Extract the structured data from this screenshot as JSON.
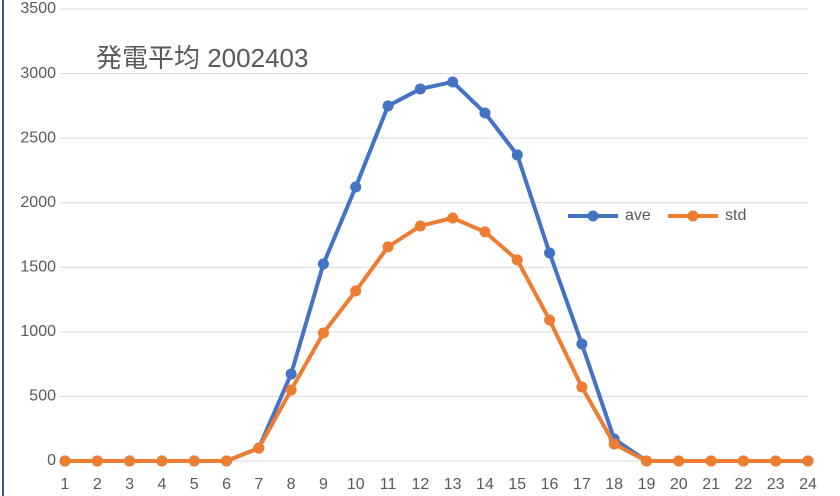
{
  "chart_data": {
    "type": "line",
    "title": "発電平均 2002403",
    "categories": [
      "1",
      "2",
      "3",
      "4",
      "5",
      "6",
      "7",
      "8",
      "9",
      "10",
      "11",
      "12",
      "13",
      "14",
      "15",
      "16",
      "17",
      "18",
      "19",
      "20",
      "21",
      "22",
      "23",
      "24"
    ],
    "series": [
      {
        "name": "ave",
        "color": "#4472c4",
        "values": [
          0,
          0,
          0,
          0,
          0,
          0,
          100,
          674,
          1526,
          2122,
          2750,
          2881,
          2935,
          2695,
          2370,
          1611,
          906,
          170,
          0,
          0,
          0,
          0,
          0,
          0
        ]
      },
      {
        "name": "std",
        "color": "#ed7d31",
        "values": [
          0,
          0,
          0,
          0,
          0,
          0,
          100,
          550,
          991,
          1317,
          1658,
          1820,
          1882,
          1774,
          1557,
          1092,
          573,
          132,
          0,
          0,
          0,
          0,
          0,
          0
        ]
      }
    ],
    "ylim": [
      0,
      3500
    ],
    "yticks": [
      0,
      500,
      1000,
      1500,
      2000,
      2500,
      3000,
      3500
    ],
    "grid": true,
    "legend": "right"
  }
}
